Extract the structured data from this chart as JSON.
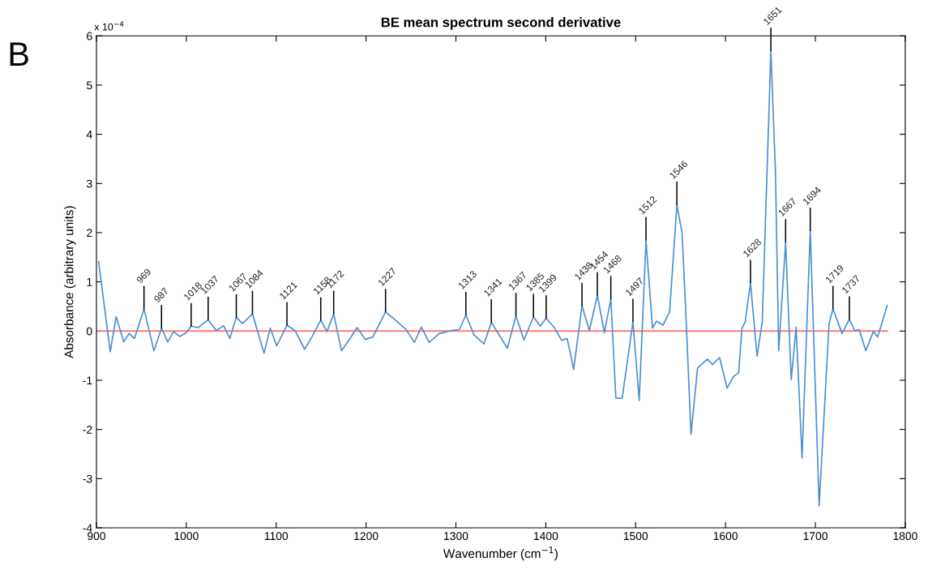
{
  "chart_data": {
    "type": "line",
    "title": "BE mean spectrum second derivative",
    "xlabel": "Wavenumber (cm$^{−1}$)",
    "ylabel": "Absorbance (arbitrary units)",
    "xlim": [
      900,
      1800
    ],
    "xticks": [
      900,
      1000,
      1100,
      1200,
      1300,
      1400,
      1500,
      1600,
      1700,
      1800
    ],
    "ylim": [
      -4,
      6
    ],
    "yticks": [
      -4,
      -3,
      -2,
      -1,
      0,
      1,
      2,
      3,
      4,
      5,
      6
    ],
    "grid": false,
    "legend": false,
    "marker": "none",
    "line_style": "solid",
    "ref_lines": [
      {
        "axis": "y",
        "value": 0,
        "color": "#ff7b7b",
        "line_style": "solid"
      }
    ],
    "series": [
      {
        "color": "#4a90d0",
        "x": [
          902.4,
          915.3,
          921.9,
          930.4,
          936.3,
          942.3,
          952.9,
          964,
          972.4,
          979.3,
          985.9,
          992.5,
          999.4,
          1005.4,
          1012.9,
          1024.3,
          1033.3,
          1041.5,
          1048.4,
          1055.6,
          1062.5,
          1073.6,
          1086.5,
          1093.4,
          1100.6,
          1112,
          1121,
          1131.6,
          1139.7,
          1149.6,
          1156.5,
          1164,
          1172.7,
          1181.1,
          1190.1,
          1199.1,
          1207.5,
          1221.7,
          1232.2,
          1244.2,
          1253.8,
          1261.6,
          1270.2,
          1281.5,
          1294.4,
          1304,
          1311.1,
          1320.2,
          1331.4,
          1339.4,
          1357.2,
          1366.8,
          1375.7,
          1386.3,
          1393.8,
          1400.4,
          1409.4,
          1417.8,
          1423.8,
          1431,
          1440.3,
          1448.5,
          1457.4,
          1465.2,
          1472.4,
          1478,
          1485,
          1497,
          1504,
          1511.5,
          1518.8,
          1523.2,
          1530.5,
          1537.8,
          1545.9,
          1551.7,
          1556.1,
          1561.6,
          1568.9,
          1579.9,
          1585.4,
          1593.4,
          1601.8,
          1609.1,
          1614.6,
          1618.3,
          1621.9,
          1627.8,
          1635.1,
          1640.9,
          1650.5,
          1655.6,
          1659.2,
          1666.9,
          1673.1,
          1678.6,
          1685.2,
          1694.3,
          1704.2,
          1715.2,
          1719.6,
          1729.8,
          1737.8,
          1743.7,
          1748.8,
          1756.1,
          1764.5,
          1769.3,
          1779.9
        ],
        "values": [
          1.41,
          -0.42,
          0.29,
          -0.22,
          -0.05,
          -0.15,
          0.45,
          -0.4,
          0.06,
          -0.22,
          -0.01,
          -0.11,
          -0.04,
          0.1,
          0.07,
          0.23,
          0.01,
          0.11,
          -0.15,
          0.28,
          0.15,
          0.35,
          -0.45,
          0.06,
          -0.3,
          0.12,
          0.01,
          -0.37,
          -0.12,
          0.22,
          -0.01,
          0.35,
          -0.4,
          -0.18,
          0.07,
          -0.17,
          -0.12,
          0.39,
          0.23,
          0.04,
          -0.23,
          0.08,
          -0.23,
          -0.05,
          0.01,
          0.03,
          0.33,
          -0.08,
          -0.26,
          0.18,
          -0.35,
          0.31,
          -0.18,
          0.29,
          0.1,
          0.26,
          0.07,
          -0.19,
          -0.15,
          -0.78,
          0.51,
          0.01,
          0.73,
          -0.03,
          0.65,
          -1.36,
          -1.37,
          0.19,
          -1.41,
          1.85,
          0.06,
          0.2,
          0.12,
          0.39,
          2.57,
          1.99,
          0.26,
          -2.1,
          -0.75,
          -0.57,
          -0.68,
          -0.54,
          -1.16,
          -0.92,
          -0.85,
          0.05,
          0.19,
          0.98,
          -0.51,
          0.19,
          5.7,
          3.23,
          -0.4,
          1.81,
          -0.99,
          0.08,
          -2.58,
          2.04,
          -3.55,
          0.15,
          0.45,
          -0.05,
          0.24,
          0.01,
          0.03,
          -0.4,
          -0.01,
          -0.12,
          0.52
        ]
      }
    ],
    "annotations": [
      "B",
      "x 10$^{−4}$",
      {
        "text": "969",
        "x": 952.9,
        "y": 0.45
      },
      {
        "text": "987",
        "x": 972.4,
        "y": 0.06
      },
      {
        "text": "1018",
        "x": 1005.4,
        "y": 0.1
      },
      {
        "text": "1037",
        "x": 1024.3,
        "y": 0.23
      },
      {
        "text": "1067",
        "x": 1055.6,
        "y": 0.28
      },
      {
        "text": "1084",
        "x": 1073.6,
        "y": 0.35
      },
      {
        "text": "1121",
        "x": 1112,
        "y": 0.12
      },
      {
        "text": "1158",
        "x": 1149.6,
        "y": 0.22
      },
      {
        "text": "1172",
        "x": 1164,
        "y": 0.35
      },
      {
        "text": "1227",
        "x": 1221.7,
        "y": 0.39
      },
      {
        "text": "1313",
        "x": 1311.1,
        "y": 0.33
      },
      {
        "text": "1341",
        "x": 1339.4,
        "y": 0.18
      },
      {
        "text": "1367",
        "x": 1366.8,
        "y": 0.31
      },
      {
        "text": "1385",
        "x": 1386.3,
        "y": 0.29
      },
      {
        "text": "1399",
        "x": 1400.4,
        "y": 0.26
      },
      {
        "text": "1438",
        "x": 1440.3,
        "y": 0.51
      },
      {
        "text": "1454",
        "x": 1457.4,
        "y": 0.73
      },
      {
        "text": "1468",
        "x": 1472.4,
        "y": 0.65
      },
      {
        "text": "1497",
        "x": 1497,
        "y": 0.19
      },
      {
        "text": "1512",
        "x": 1511.5,
        "y": 1.85
      },
      {
        "text": "1546",
        "x": 1545.9,
        "y": 2.57
      },
      {
        "text": "1628",
        "x": 1627.8,
        "y": 0.98
      },
      {
        "text": "1651",
        "x": 1650.5,
        "y": 5.7
      },
      {
        "text": "1667",
        "x": 1666.9,
        "y": 1.81
      },
      {
        "text": "1694",
        "x": 1694.3,
        "y": 2.04
      },
      {
        "text": "1719",
        "x": 1719.6,
        "y": 0.45
      },
      {
        "text": "1737",
        "x": 1737.8,
        "y": 0.24
      }
    ]
  }
}
